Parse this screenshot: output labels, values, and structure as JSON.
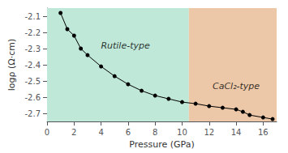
{
  "chart_data": {
    "type": "line",
    "xlabel": "Pressure (GPa)",
    "ylabel": "logρ (Ω·cm)",
    "x": [
      1.0,
      1.5,
      2.0,
      2.5,
      3.0,
      4.0,
      5.0,
      6.0,
      7.0,
      8.0,
      9.0,
      10.0,
      11.0,
      12.0,
      13.0,
      14.0,
      14.5,
      15.0,
      16.0,
      16.7
    ],
    "values": [
      -2.08,
      -2.18,
      -2.22,
      -2.3,
      -2.34,
      -2.41,
      -2.47,
      -2.52,
      -2.56,
      -2.59,
      -2.61,
      -2.63,
      -2.64,
      -2.655,
      -2.665,
      -2.675,
      -2.69,
      -2.71,
      -2.725,
      -2.735
    ],
    "color": "black",
    "marker": "circle",
    "xlim": [
      0,
      17
    ],
    "ylim": [
      -2.75,
      -2.05
    ],
    "xticks": [
      0,
      2,
      4,
      6,
      8,
      10,
      12,
      14,
      16
    ],
    "yticks": [
      -2.7,
      -2.6,
      -2.5,
      -2.4,
      -2.3,
      -2.2,
      -2.1
    ],
    "grid": false,
    "regions": [
      {
        "from": 0,
        "to": 10.5,
        "color": "#bfe8d8"
      },
      {
        "from": 10.5,
        "to": 17,
        "color": "#edc8a8"
      }
    ],
    "annotations": [
      {
        "text": "Rutile-type",
        "x": 5.8,
        "y": -2.28
      },
      {
        "text": "CaCl₂-type",
        "x": 14.0,
        "y": -2.53
      }
    ]
  }
}
